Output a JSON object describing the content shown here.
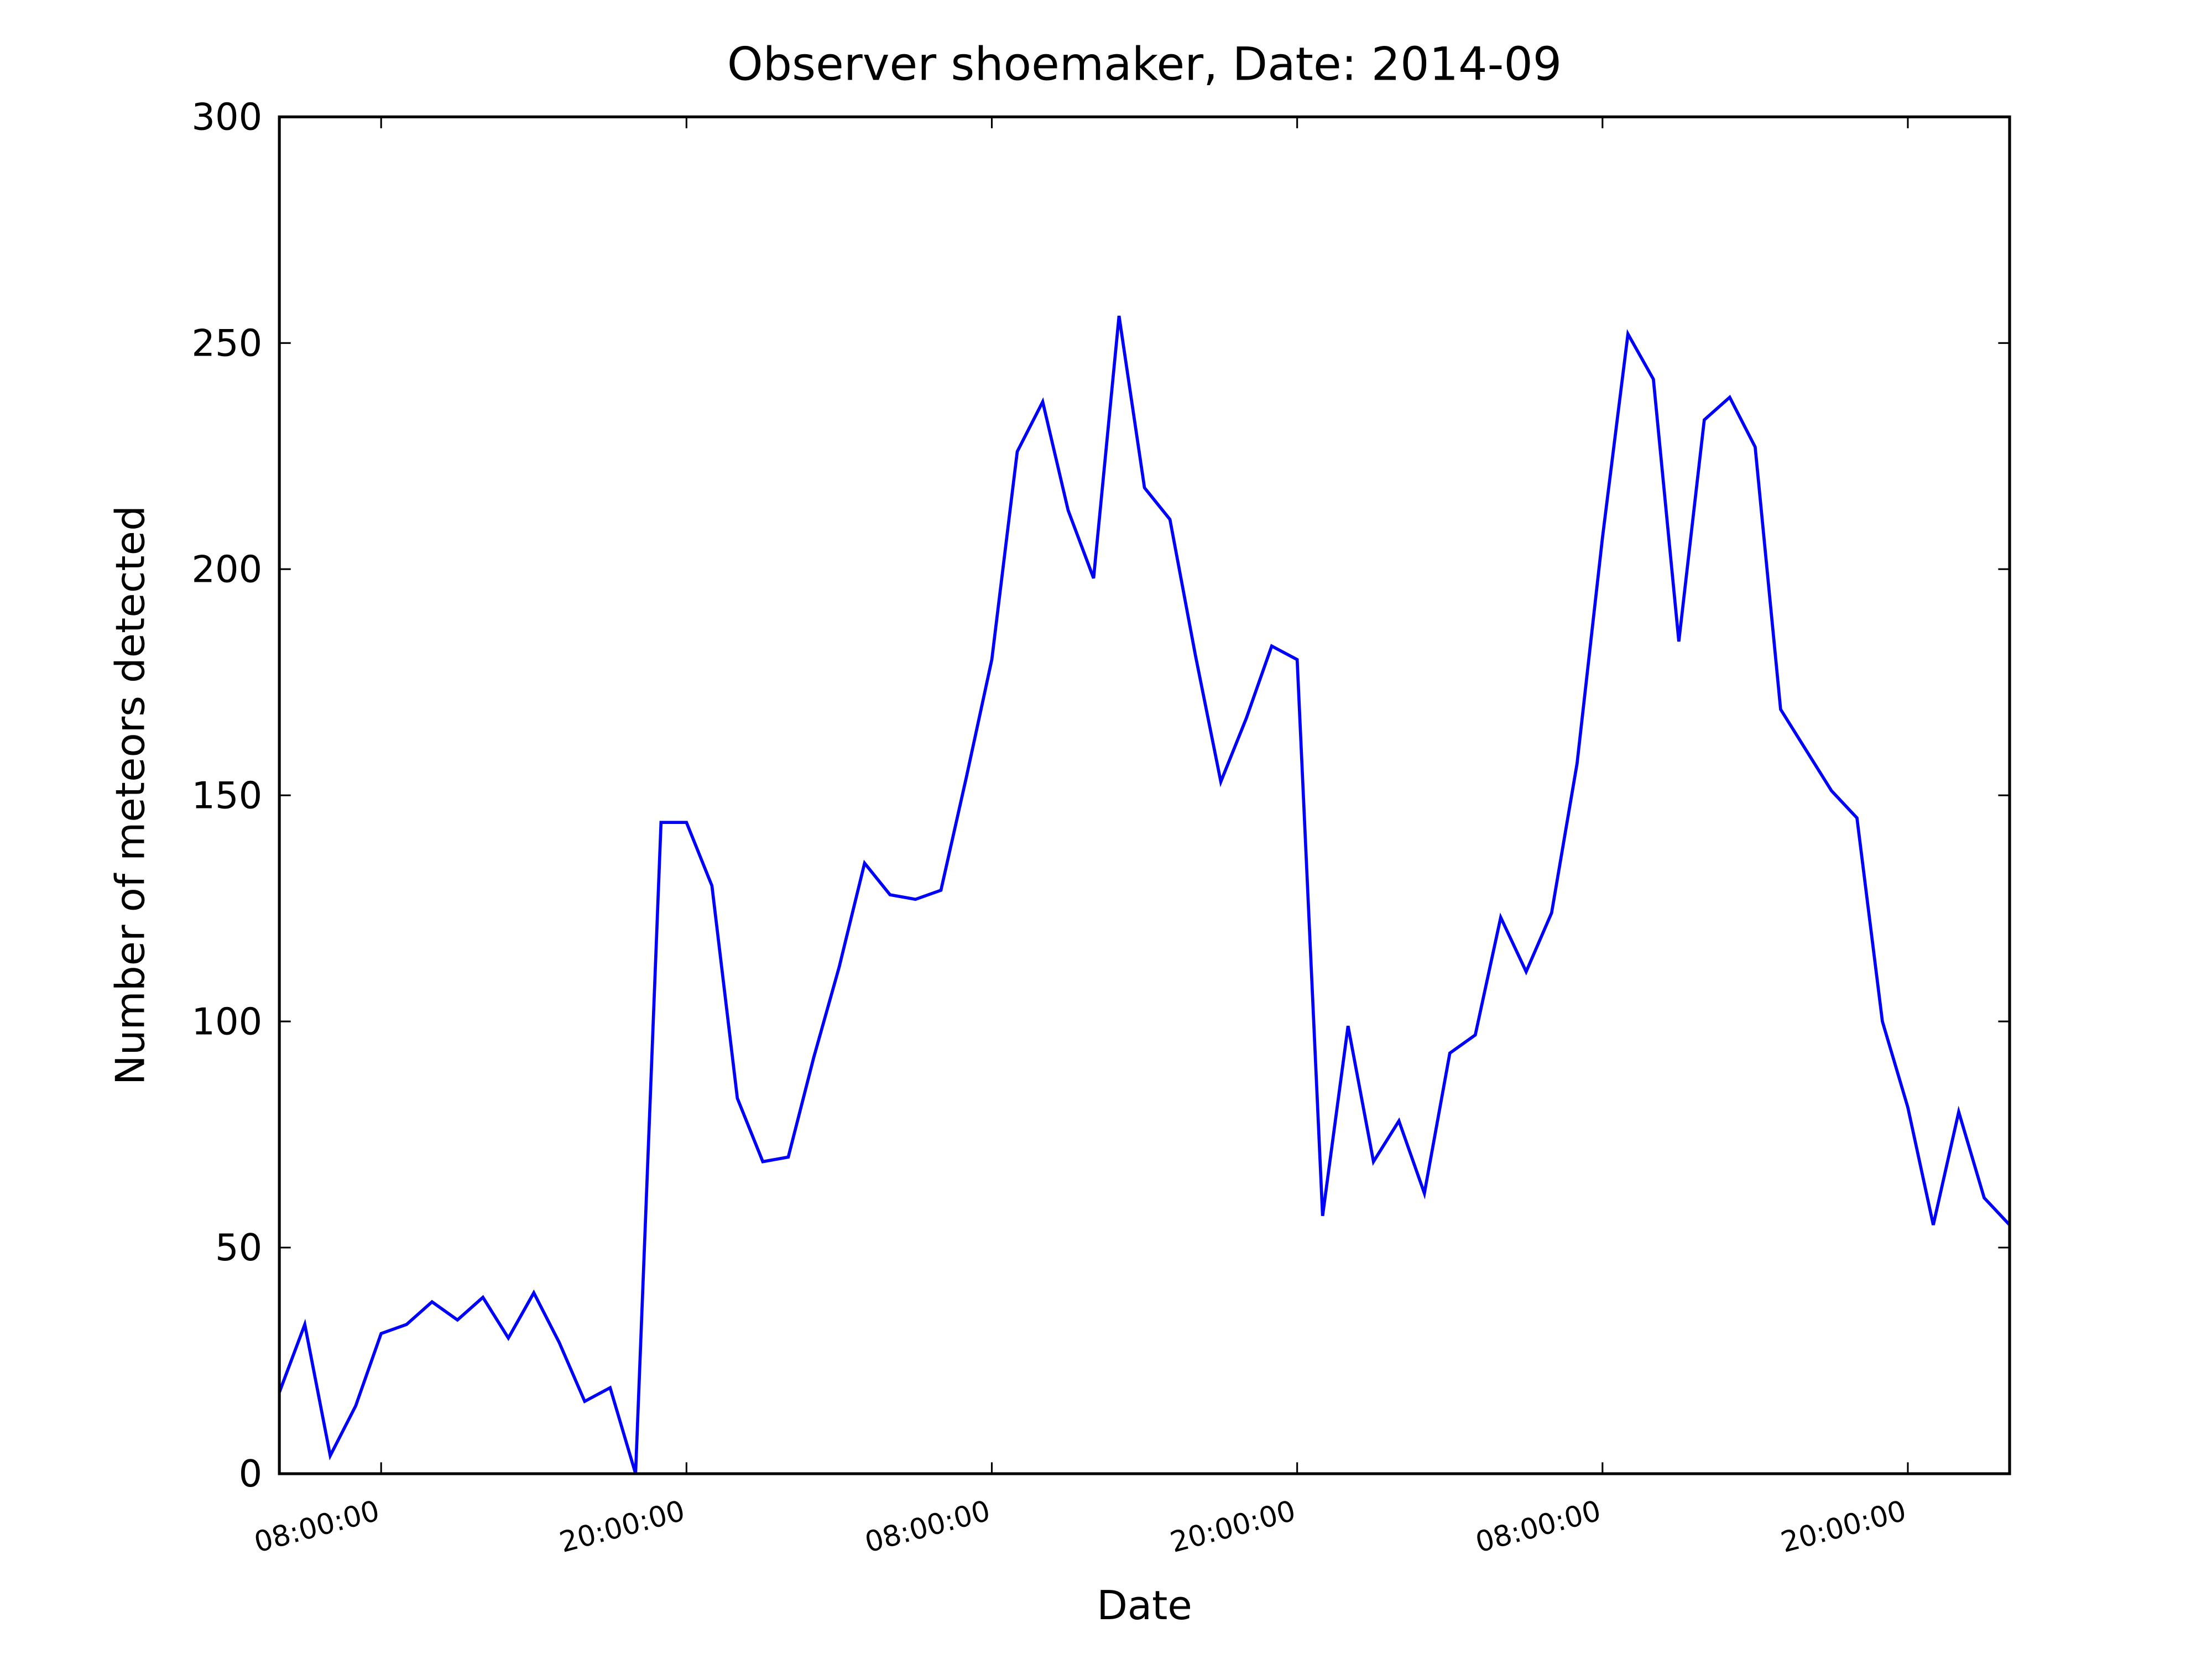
{
  "chart_data": {
    "type": "line",
    "title": "Observer shoemaker, Date: 2014-09",
    "xlabel": "Date",
    "ylabel": "Number of meteors detected",
    "x": [
      4,
      5,
      6,
      7,
      8,
      9,
      10,
      11,
      12,
      13,
      14,
      15,
      16,
      17,
      18,
      19,
      20,
      21,
      22,
      23,
      24,
      25,
      26,
      27,
      28,
      29,
      30,
      31,
      32,
      33,
      34,
      35,
      36,
      37,
      38,
      39,
      40,
      41,
      42,
      43,
      44,
      45,
      46,
      47,
      48,
      49,
      50,
      51,
      52,
      53,
      54,
      55,
      56,
      57,
      58,
      59,
      60,
      61,
      62,
      63,
      64,
      65,
      66,
      67,
      68,
      69,
      70,
      71,
      72
    ],
    "series": [
      {
        "name": "meteors",
        "color": "#0000ff",
        "values": [
          18,
          33,
          4,
          15,
          31,
          33,
          38,
          34,
          39,
          30,
          40,
          29,
          16,
          19,
          0,
          144,
          144,
          130,
          83,
          69,
          70,
          92,
          112,
          135,
          128,
          127,
          129,
          154,
          180,
          226,
          237,
          213,
          198,
          256,
          218,
          211,
          181,
          153,
          167,
          183,
          180,
          57,
          99,
          69,
          78,
          62,
          93,
          97,
          123,
          111,
          124,
          157,
          207,
          252,
          242,
          184,
          233,
          238,
          227,
          169,
          160,
          151,
          145,
          100,
          81,
          55,
          80,
          61,
          55
        ]
      }
    ],
    "xlim": [
      4,
      72
    ],
    "xticks": [
      {
        "value": 8,
        "label": "08:00:00"
      },
      {
        "value": 20,
        "label": "20:00:00"
      },
      {
        "value": 32,
        "label": "08:00:00"
      },
      {
        "value": 44,
        "label": "20:00:00"
      },
      {
        "value": 56,
        "label": "08:00:00"
      },
      {
        "value": 68,
        "label": "20:00:00"
      }
    ],
    "ylim": [
      0,
      300
    ],
    "yticks": [
      0,
      50,
      100,
      150,
      200,
      250,
      300
    ],
    "grid": false
  }
}
